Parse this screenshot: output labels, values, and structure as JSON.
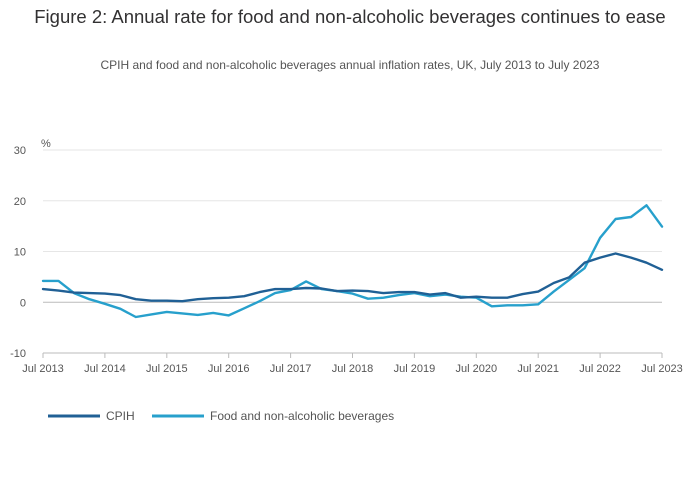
{
  "chart_data": {
    "type": "line",
    "title": "Figure 2: Annual rate for food and non-alcoholic beverages continues to ease",
    "subtitle": "CPIH and food and non-alcoholic beverages annual inflation rates, UK, July 2013 to July 2023",
    "ylabel": "%",
    "xlabel": "",
    "ylim": [
      -10,
      30
    ],
    "yticks": [
      "30",
      "20",
      "10",
      "0",
      "-10"
    ],
    "xlim": [
      "2013-07",
      "2023-07"
    ],
    "xticks": [
      "Jul 2013",
      "Jul 2014",
      "Jul 2015",
      "Jul 2016",
      "Jul 2017",
      "Jul 2018",
      "Jul 2019",
      "Jul 2020",
      "Jul 2021",
      "Jul 2022",
      "Jul 2023"
    ],
    "grid": true,
    "legend_position": "bottom-left",
    "series": [
      {
        "name": "CPIH",
        "color": "#206095",
        "points": [
          [
            "2013-07",
            2.6
          ],
          [
            "2013-10",
            2.3
          ],
          [
            "2014-01",
            1.9
          ],
          [
            "2014-04",
            1.8
          ],
          [
            "2014-07",
            1.7
          ],
          [
            "2014-10",
            1.4
          ],
          [
            "2015-01",
            0.6
          ],
          [
            "2015-04",
            0.3
          ],
          [
            "2015-07",
            0.3
          ],
          [
            "2015-10",
            0.2
          ],
          [
            "2016-01",
            0.6
          ],
          [
            "2016-04",
            0.8
          ],
          [
            "2016-07",
            0.9
          ],
          [
            "2016-10",
            1.2
          ],
          [
            "2017-01",
            2.0
          ],
          [
            "2017-04",
            2.6
          ],
          [
            "2017-07",
            2.6
          ],
          [
            "2017-10",
            2.8
          ],
          [
            "2018-01",
            2.7
          ],
          [
            "2018-04",
            2.2
          ],
          [
            "2018-07",
            2.3
          ],
          [
            "2018-10",
            2.2
          ],
          [
            "2019-01",
            1.8
          ],
          [
            "2019-04",
            2.0
          ],
          [
            "2019-07",
            2.0
          ],
          [
            "2019-10",
            1.5
          ],
          [
            "2020-01",
            1.8
          ],
          [
            "2020-04",
            0.9
          ],
          [
            "2020-07",
            1.1
          ],
          [
            "2020-10",
            0.9
          ],
          [
            "2021-01",
            0.9
          ],
          [
            "2021-04",
            1.6
          ],
          [
            "2021-07",
            2.1
          ],
          [
            "2021-10",
            3.8
          ],
          [
            "2022-01",
            4.9
          ],
          [
            "2022-04",
            7.8
          ],
          [
            "2022-07",
            8.8
          ],
          [
            "2022-10",
            9.6
          ],
          [
            "2023-01",
            8.8
          ],
          [
            "2023-04",
            7.8
          ],
          [
            "2023-07",
            6.4
          ]
        ]
      },
      {
        "name": "Food and non-alcoholic beverages",
        "color": "#27a0cc",
        "points": [
          [
            "2013-07",
            4.2
          ],
          [
            "2013-10",
            4.2
          ],
          [
            "2014-01",
            1.8
          ],
          [
            "2014-04",
            0.6
          ],
          [
            "2014-07",
            -0.3
          ],
          [
            "2014-10",
            -1.3
          ],
          [
            "2015-01",
            -2.9
          ],
          [
            "2015-04",
            -2.4
          ],
          [
            "2015-07",
            -1.9
          ],
          [
            "2015-10",
            -2.2
          ],
          [
            "2016-01",
            -2.5
          ],
          [
            "2016-04",
            -2.1
          ],
          [
            "2016-07",
            -2.6
          ],
          [
            "2016-10",
            -1.2
          ],
          [
            "2017-01",
            0.2
          ],
          [
            "2017-04",
            1.8
          ],
          [
            "2017-07",
            2.4
          ],
          [
            "2017-10",
            4.1
          ],
          [
            "2018-01",
            2.6
          ],
          [
            "2018-04",
            2.2
          ],
          [
            "2018-07",
            1.7
          ],
          [
            "2018-10",
            0.7
          ],
          [
            "2019-01",
            0.9
          ],
          [
            "2019-04",
            1.4
          ],
          [
            "2019-07",
            1.8
          ],
          [
            "2019-10",
            1.2
          ],
          [
            "2020-01",
            1.5
          ],
          [
            "2020-04",
            1.1
          ],
          [
            "2020-07",
            0.9
          ],
          [
            "2020-10",
            -0.8
          ],
          [
            "2021-01",
            -0.6
          ],
          [
            "2021-04",
            -0.6
          ],
          [
            "2021-07",
            -0.4
          ],
          [
            "2021-10",
            2.1
          ],
          [
            "2022-01",
            4.4
          ],
          [
            "2022-04",
            6.7
          ],
          [
            "2022-07",
            12.7
          ],
          [
            "2022-10",
            16.4
          ],
          [
            "2023-01",
            16.8
          ],
          [
            "2023-04",
            19.1
          ],
          [
            "2023-07",
            14.9
          ]
        ]
      }
    ]
  }
}
